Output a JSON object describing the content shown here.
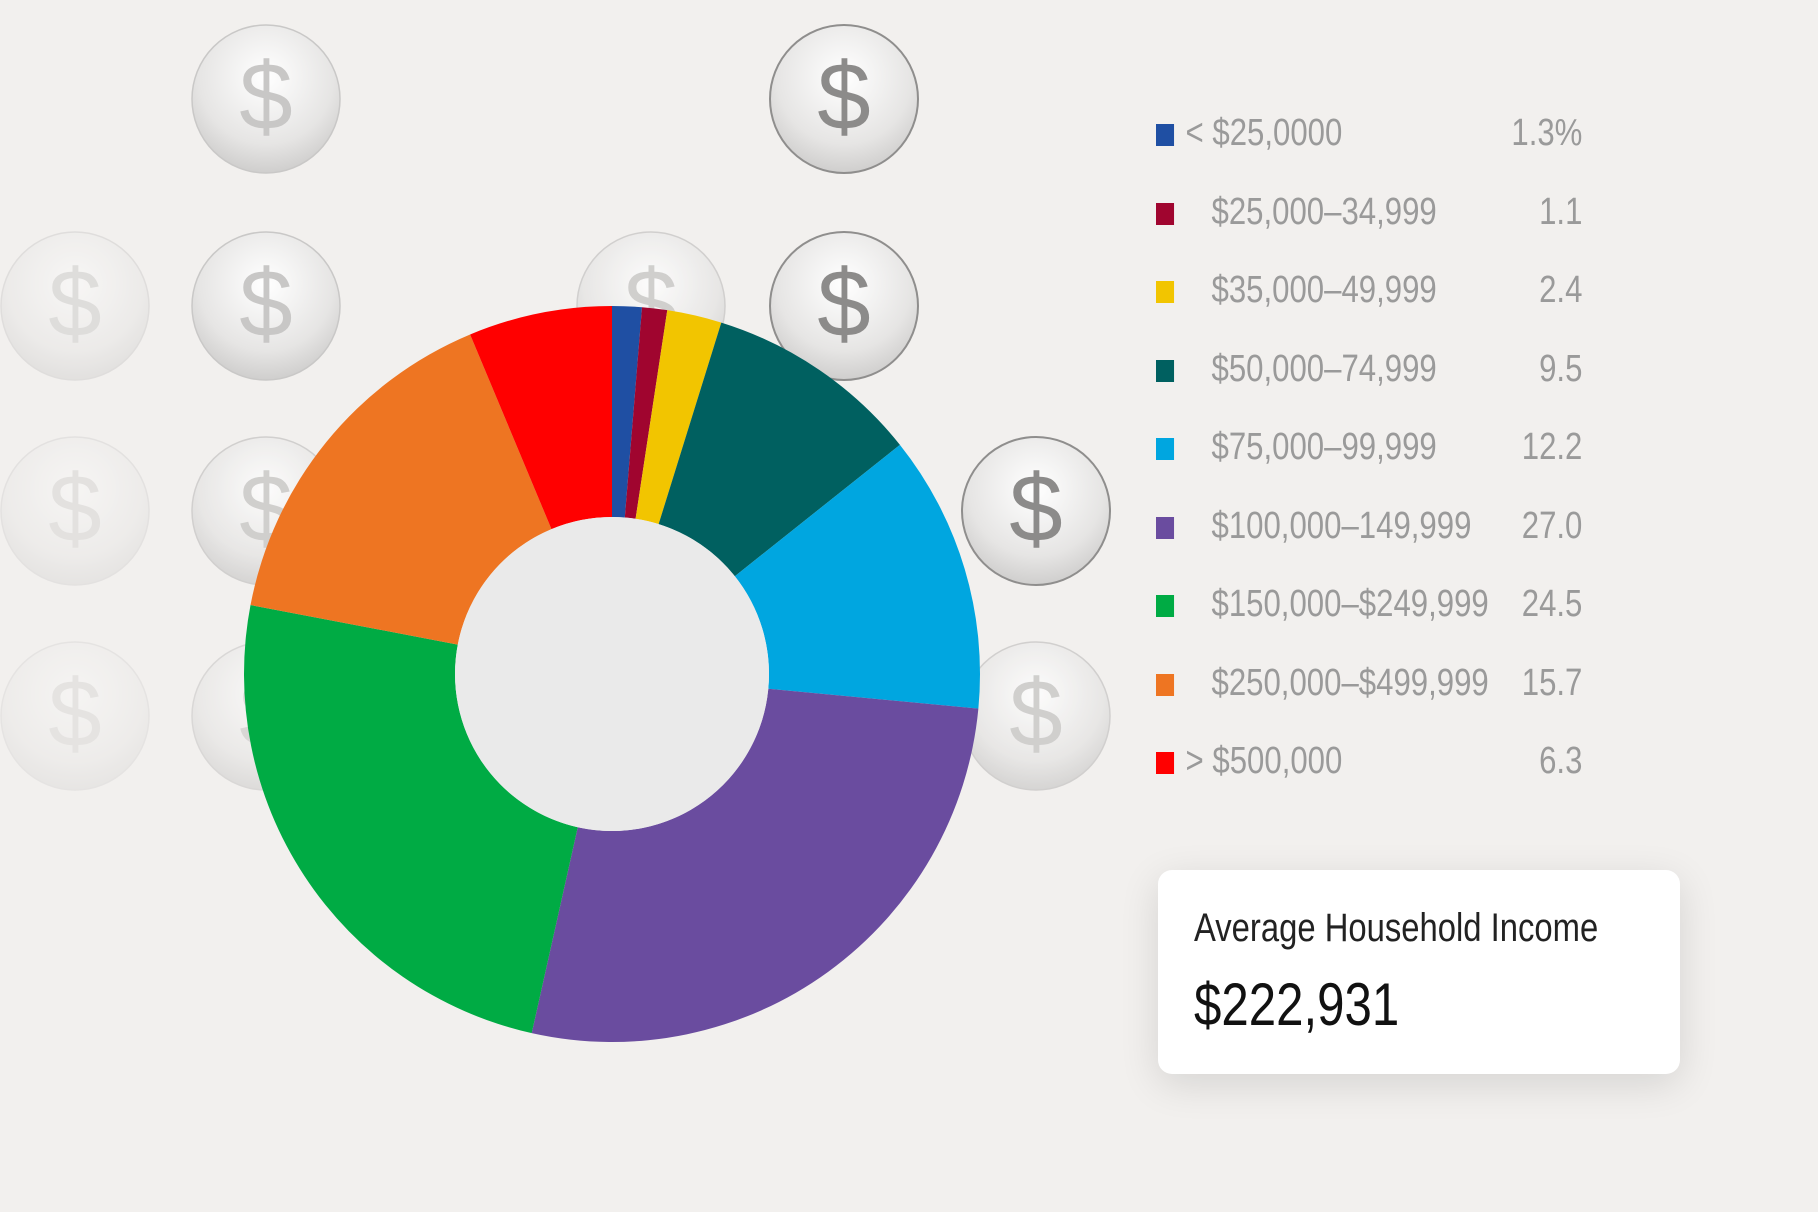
{
  "chart_data": {
    "type": "pie",
    "donut": true,
    "categories": [
      "< $25,0000",
      "$25,000–34,999",
      "$35,000–49,999",
      "$50,000–74,999",
      "$75,000–99,999",
      "$100,000–149,999",
      "$150,000–$249,999",
      "$250,000–$499,999",
      "> $500,000"
    ],
    "values": [
      1.3,
      1.1,
      2.4,
      9.5,
      12.2,
      27.0,
      24.5,
      15.7,
      6.3
    ],
    "value_labels": [
      "1.3%",
      "1.1",
      "2.4",
      "9.5",
      "12.2",
      "27.0",
      "24.5",
      "15.7",
      "6.3"
    ],
    "colors": [
      "#1f4fa3",
      "#a0052f",
      "#f2c500",
      "#006060",
      "#00a6e0",
      "#6a4c9f",
      "#00ab44",
      "#ee7522",
      "#ff0000"
    ],
    "legend_position": "right",
    "title": "",
    "xlabel": "",
    "ylabel": ""
  },
  "summary_card": {
    "title": "Average Household Income",
    "value": "$222,931"
  },
  "background": {
    "color": "#f2f0ee",
    "decoration_icon": "dollar-coin-icon",
    "coin_symbol": "$"
  }
}
